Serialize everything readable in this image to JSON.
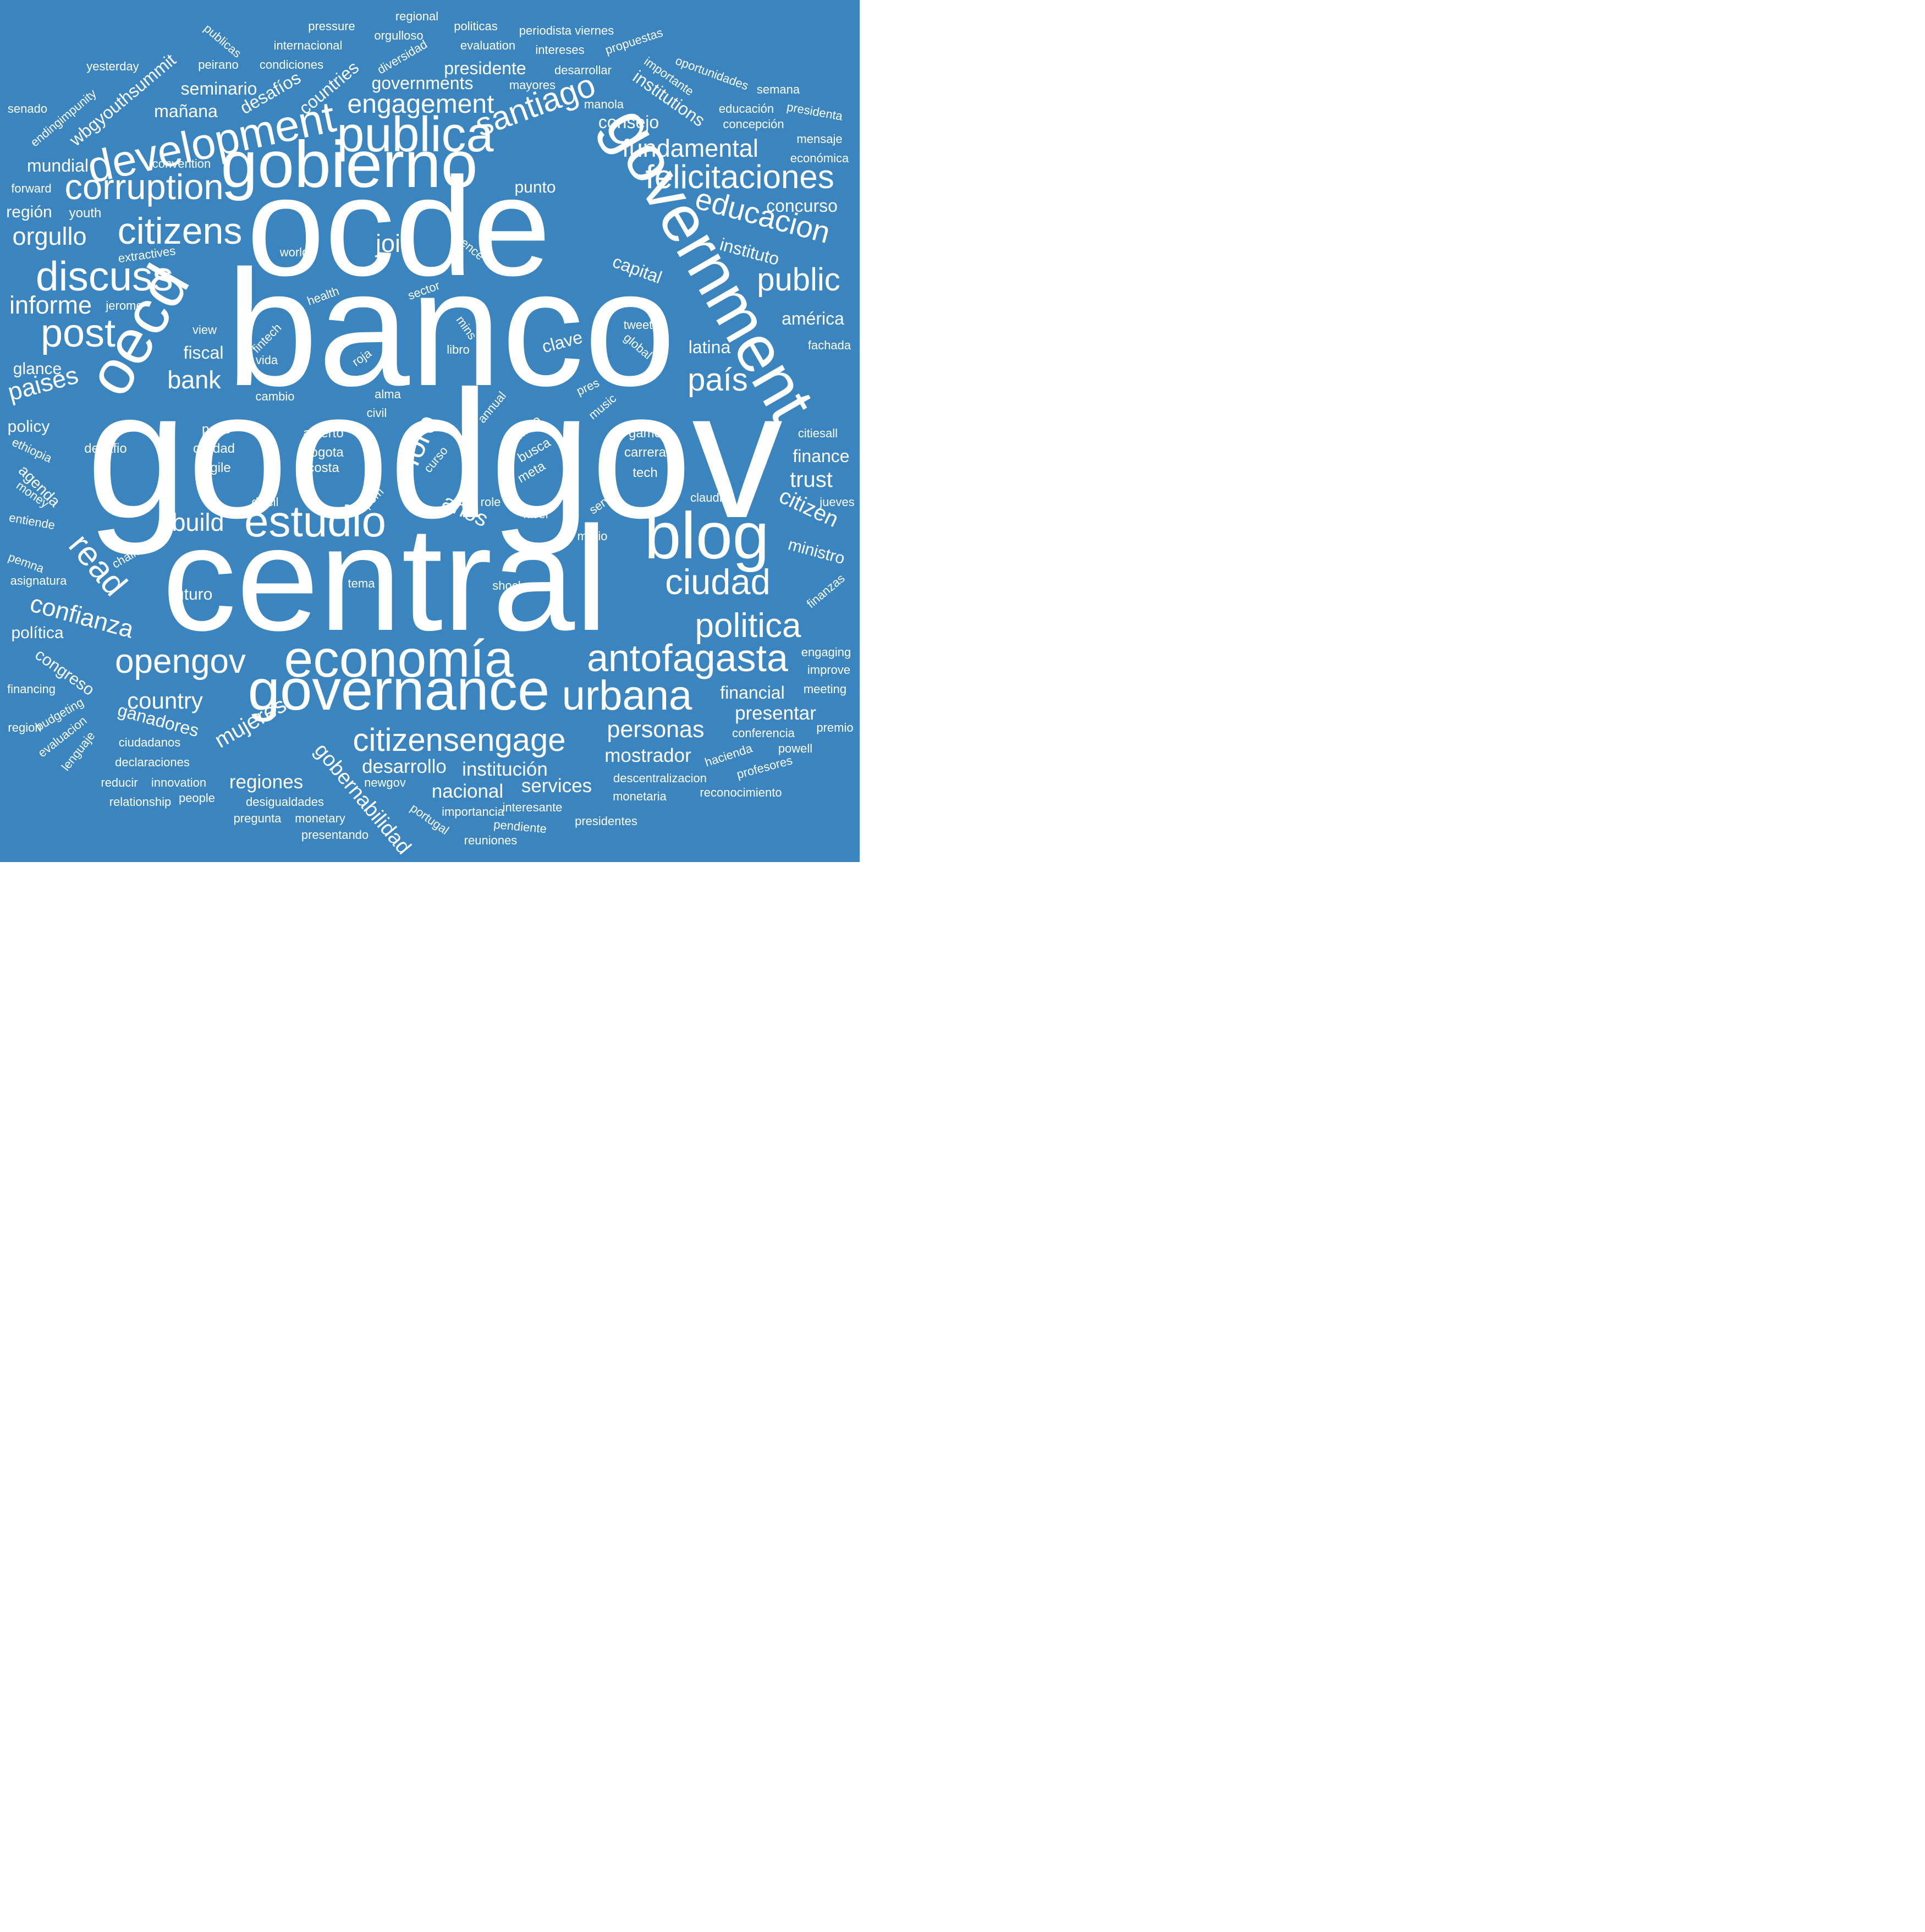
{
  "background": "#3a85bf",
  "word_color": "#ffffff",
  "words": [
    "goodgov",
    "banco",
    "central",
    "ocde",
    "government",
    "gobierno",
    "publica",
    "oecd",
    "governance",
    "economía",
    "blog",
    "discuss",
    "development",
    "corruption",
    "citizens",
    "post",
    "estudio",
    "antofagasta",
    "urbana",
    "politica",
    "ciudad",
    "citizensengage",
    "opengov",
    "santiago",
    "felicitaciones",
    "engagement",
    "educacion",
    "public",
    "país",
    "read",
    "fundamental",
    "confianza",
    "foro",
    "join",
    "informe",
    "orgullo",
    "paises",
    "mujeres",
    "gobernabilidad",
    "country",
    "bank",
    "build",
    "años",
    "desarrollo",
    "institución",
    "nacional",
    "services",
    "personas",
    "regiones",
    "mostrador",
    "presentar",
    "financial",
    "ganadores",
    "congreso",
    "citizen",
    "trust",
    "finance",
    "ministro",
    "américa",
    "latina",
    "clave",
    "fiscal",
    "capital",
    "instituto",
    "concurso",
    "consejo",
    "mundial",
    "mañana",
    "seminario",
    "desafíos",
    "countries",
    "governments",
    "presidente",
    "institutions",
    "wbgyouthsummit",
    "glance",
    "policy",
    "agenda",
    "política",
    "futuro",
    "punto",
    "región",
    "youth",
    "forward",
    "convention",
    "senado",
    "endingimpunity",
    "yesterday",
    "publicas",
    "pressure",
    "internacional",
    "regional",
    "orgulloso",
    "politicas",
    "periodista viernes",
    "evaluation",
    "intereses",
    "propuestas",
    "peirano",
    "condiciones",
    "diversidad",
    "desarrollar",
    "importante",
    "oportunidades",
    "semana",
    "mayores",
    "manola",
    "educación",
    "presidenta",
    "concepción",
    "mensaje",
    "económica",
    "world",
    "vence",
    "extractives",
    "health",
    "sector",
    "jerome",
    "view",
    "fintech",
    "vida",
    "mins",
    "libro",
    "roja",
    "global",
    "tweet",
    "fachada",
    "cambio",
    "alma",
    "civil",
    "pres",
    "annual",
    "music",
    "paris",
    "calidad",
    "fragile",
    "desafio",
    "abierto",
    "bogota",
    "costa",
    "mayo",
    "busca",
    "meta",
    "curso",
    "game",
    "carrera",
    "tech",
    "citiesall",
    "ethiopia",
    "money",
    "entiende",
    "pemna",
    "asignatura",
    "challenge",
    "dificil",
    "ipom",
    "role",
    "nivel",
    "servir",
    "mario",
    "claudia",
    "jueves",
    "tema",
    "shock",
    "finanzas",
    "engaging",
    "improve",
    "meeting",
    "financing",
    "budgeting",
    "region",
    "evaluacion",
    "lenguaje",
    "ciudadanos",
    "declaraciones",
    "reducir",
    "innovation",
    "relationship",
    "people",
    "desigualdades",
    "pregunta",
    "monetary",
    "presentando",
    "newgov",
    "portugal",
    "importancia",
    "interesante",
    "pendiente",
    "reuniones",
    "presidentes",
    "monetaria",
    "descentralizacion",
    "reconocimiento",
    "hacienda",
    "profesores",
    "conferencia",
    "powell",
    "premio"
  ]
}
